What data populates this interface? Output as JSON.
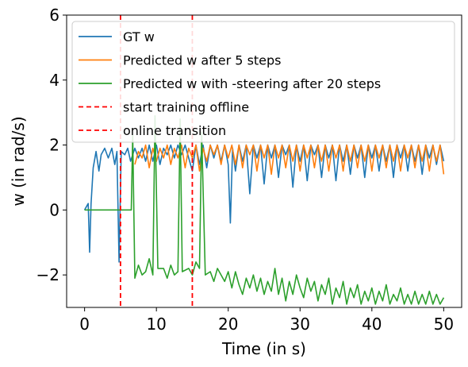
{
  "chart_data": {
    "type": "line",
    "xlabel": "Time (in s)",
    "ylabel": "w (in rad/s)",
    "xlim": [
      -2.5,
      52.5
    ],
    "ylim": [
      -3,
      6
    ],
    "x_ticks": [
      0,
      10,
      20,
      30,
      40,
      50
    ],
    "y_ticks": [
      -2,
      0,
      2,
      4,
      6
    ],
    "y_tick_labels": [
      "−2",
      "0",
      "2",
      "4",
      "6"
    ],
    "grid": false,
    "legend_position": "top-left",
    "series": [
      {
        "name": "GT w",
        "color": "#1f77b4",
        "points": [
          [
            0,
            0
          ],
          [
            0.5,
            0.2
          ],
          [
            0.7,
            -1.3
          ],
          [
            0.9,
            0.2
          ],
          [
            1.2,
            1.3
          ],
          [
            1.6,
            1.8
          ],
          [
            2.0,
            1.2
          ],
          [
            2.3,
            1.7
          ],
          [
            2.8,
            1.9
          ],
          [
            3.3,
            1.6
          ],
          [
            3.8,
            1.9
          ],
          [
            4.2,
            1.4
          ],
          [
            4.5,
            1.8
          ],
          [
            4.8,
            -1.6
          ],
          [
            5.1,
            1.8
          ],
          [
            5.6,
            1.7
          ],
          [
            6.0,
            1.9
          ],
          [
            6.4,
            1.5
          ],
          [
            7.0,
            1.9
          ],
          [
            7.5,
            1.6
          ],
          [
            8.0,
            1.9
          ],
          [
            8.5,
            1.5
          ],
          [
            9.0,
            2.0
          ],
          [
            9.5,
            1.5
          ],
          [
            10.0,
            2.0
          ],
          [
            10.5,
            1.4
          ],
          [
            11.0,
            1.9
          ],
          [
            11.5,
            1.7
          ],
          [
            12.0,
            2.0
          ],
          [
            12.5,
            1.6
          ],
          [
            13.0,
            2.0
          ],
          [
            13.5,
            1.7
          ],
          [
            14.0,
            2.0
          ],
          [
            14.5,
            1.6
          ],
          [
            15.0,
            1.2
          ],
          [
            15.5,
            2.0
          ],
          [
            16.0,
            1.4
          ],
          [
            16.5,
            2.0
          ],
          [
            17.0,
            1.3
          ],
          [
            17.5,
            2.0
          ],
          [
            18.0,
            1.6
          ],
          [
            18.5,
            2.0
          ],
          [
            19.0,
            1.5
          ],
          [
            19.5,
            2.0
          ],
          [
            20.0,
            1.4
          ],
          [
            20.3,
            -0.4
          ],
          [
            20.6,
            1.9
          ],
          [
            21.0,
            1.2
          ],
          [
            21.5,
            2.0
          ],
          [
            22.0,
            1.5
          ],
          [
            22.5,
            2.0
          ],
          [
            23.0,
            0.5
          ],
          [
            23.5,
            2.0
          ],
          [
            24.0,
            1.6
          ],
          [
            24.5,
            2.0
          ],
          [
            25.0,
            0.8
          ],
          [
            25.5,
            2.0
          ],
          [
            26.0,
            1.6
          ],
          [
            26.5,
            2.0
          ],
          [
            27.0,
            1.0
          ],
          [
            27.5,
            2.0
          ],
          [
            28.0,
            1.7
          ],
          [
            28.5,
            2.0
          ],
          [
            29.0,
            0.7
          ],
          [
            29.5,
            2.0
          ],
          [
            30.0,
            1.5
          ],
          [
            30.5,
            2.0
          ],
          [
            31.0,
            0.9
          ],
          [
            31.5,
            2.0
          ],
          [
            32.0,
            1.7
          ],
          [
            32.5,
            2.0
          ],
          [
            33.0,
            1.0
          ],
          [
            33.5,
            2.0
          ],
          [
            34.0,
            1.6
          ],
          [
            34.5,
            2.0
          ],
          [
            35.0,
            0.9
          ],
          [
            35.5,
            2.0
          ],
          [
            36.0,
            1.5
          ],
          [
            36.5,
            2.0
          ],
          [
            37.0,
            1.1
          ],
          [
            37.5,
            2.0
          ],
          [
            38.0,
            1.6
          ],
          [
            38.5,
            2.0
          ],
          [
            39.0,
            1.0
          ],
          [
            39.5,
            2.0
          ],
          [
            40.0,
            1.6
          ],
          [
            40.5,
            2.0
          ],
          [
            41.0,
            1.2
          ],
          [
            41.5,
            2.0
          ],
          [
            42.0,
            1.5
          ],
          [
            42.5,
            2.0
          ],
          [
            43.0,
            1.0
          ],
          [
            43.5,
            2.0
          ],
          [
            44.0,
            1.6
          ],
          [
            44.5,
            2.0
          ],
          [
            45.0,
            1.2
          ],
          [
            45.5,
            2.0
          ],
          [
            46.0,
            1.5
          ],
          [
            46.5,
            2.0
          ],
          [
            47.0,
            1.1
          ],
          [
            47.5,
            2.0
          ],
          [
            48.0,
            1.6
          ],
          [
            48.5,
            2.0
          ],
          [
            49.0,
            1.4
          ],
          [
            49.5,
            2.0
          ],
          [
            50.0,
            1.5
          ]
        ]
      },
      {
        "name": "Predicted w after 5 steps",
        "color": "#ff7f0e",
        "points": [
          [
            7.0,
            1.4
          ],
          [
            7.5,
            1.8
          ],
          [
            8.0,
            1.6
          ],
          [
            8.5,
            2.0
          ],
          [
            9.0,
            1.3
          ],
          [
            9.5,
            1.9
          ],
          [
            10.0,
            1.5
          ],
          [
            10.5,
            1.9
          ],
          [
            11.0,
            1.6
          ],
          [
            11.5,
            2.0
          ],
          [
            12.0,
            1.4
          ],
          [
            12.5,
            1.9
          ],
          [
            13.0,
            1.6
          ],
          [
            13.5,
            2.0
          ],
          [
            14.0,
            1.3
          ],
          [
            14.5,
            1.9
          ],
          [
            15.0,
            1.6
          ],
          [
            15.5,
            2.0
          ],
          [
            16.0,
            1.2
          ],
          [
            16.5,
            1.9
          ],
          [
            17.0,
            1.5
          ],
          [
            17.5,
            2.0
          ],
          [
            18.0,
            1.7
          ],
          [
            18.5,
            2.0
          ],
          [
            19.0,
            1.4
          ],
          [
            19.5,
            2.0
          ],
          [
            20.0,
            1.6
          ],
          [
            20.5,
            2.0
          ],
          [
            21.0,
            1.4
          ],
          [
            21.5,
            2.0
          ],
          [
            22.0,
            1.3
          ],
          [
            22.5,
            2.0
          ],
          [
            23.0,
            1.7
          ],
          [
            23.5,
            2.0
          ],
          [
            24.0,
            1.2
          ],
          [
            24.5,
            2.0
          ],
          [
            25.0,
            1.6
          ],
          [
            25.5,
            2.0
          ],
          [
            26.0,
            1.1
          ],
          [
            26.5,
            2.0
          ],
          [
            27.0,
            1.6
          ],
          [
            27.5,
            2.0
          ],
          [
            28.0,
            1.3
          ],
          [
            28.5,
            2.0
          ],
          [
            29.0,
            1.5
          ],
          [
            29.5,
            2.0
          ],
          [
            30.0,
            1.2
          ],
          [
            30.5,
            2.0
          ],
          [
            31.0,
            1.6
          ],
          [
            31.5,
            2.0
          ],
          [
            32.0,
            1.3
          ],
          [
            32.5,
            2.0
          ],
          [
            33.0,
            1.5
          ],
          [
            33.5,
            2.0
          ],
          [
            34.0,
            1.2
          ],
          [
            34.5,
            2.0
          ],
          [
            35.0,
            1.6
          ],
          [
            35.5,
            2.0
          ],
          [
            36.0,
            1.2
          ],
          [
            36.5,
            2.0
          ],
          [
            37.0,
            1.5
          ],
          [
            37.5,
            2.0
          ],
          [
            38.0,
            1.3
          ],
          [
            38.5,
            2.0
          ],
          [
            39.0,
            1.5
          ],
          [
            39.5,
            2.0
          ],
          [
            40.0,
            1.2
          ],
          [
            40.5,
            2.0
          ],
          [
            41.0,
            1.6
          ],
          [
            41.5,
            2.0
          ],
          [
            42.0,
            1.3
          ],
          [
            42.5,
            2.0
          ],
          [
            43.0,
            1.5
          ],
          [
            43.5,
            2.0
          ],
          [
            44.0,
            1.2
          ],
          [
            44.5,
            2.0
          ],
          [
            45.0,
            1.6
          ],
          [
            45.5,
            2.0
          ],
          [
            46.0,
            1.3
          ],
          [
            46.5,
            2.0
          ],
          [
            47.0,
            1.5
          ],
          [
            47.5,
            2.0
          ],
          [
            48.0,
            1.2
          ],
          [
            48.5,
            2.0
          ],
          [
            49.0,
            1.5
          ],
          [
            49.5,
            2.0
          ],
          [
            50.0,
            1.1
          ]
        ]
      },
      {
        "name": "Predicted w with -steering after 20 steps",
        "color": "#2ca02c",
        "points": [
          [
            0,
            0
          ],
          [
            6.5,
            0
          ],
          [
            6.7,
            2.3
          ],
          [
            7.0,
            -2.1
          ],
          [
            7.5,
            -1.7
          ],
          [
            8.0,
            -2.0
          ],
          [
            8.5,
            -1.9
          ],
          [
            9.0,
            -1.5
          ],
          [
            9.5,
            -2.0
          ],
          [
            9.8,
            2.9
          ],
          [
            10.2,
            -1.8
          ],
          [
            11.0,
            -1.8
          ],
          [
            11.5,
            -2.1
          ],
          [
            12.0,
            -1.7
          ],
          [
            12.5,
            -2.0
          ],
          [
            13.0,
            -1.9
          ],
          [
            13.3,
            2.8
          ],
          [
            13.6,
            -1.9
          ],
          [
            14.5,
            -1.8
          ],
          [
            15.0,
            -2.0
          ],
          [
            15.5,
            -1.6
          ],
          [
            16.0,
            -1.8
          ],
          [
            16.3,
            2.4
          ],
          [
            16.8,
            -2.0
          ],
          [
            17.5,
            -1.9
          ],
          [
            18.0,
            -2.2
          ],
          [
            18.5,
            -1.8
          ],
          [
            19.0,
            -2.0
          ],
          [
            19.5,
            -2.2
          ],
          [
            20.0,
            -1.9
          ],
          [
            20.5,
            -2.4
          ],
          [
            21.0,
            -1.9
          ],
          [
            21.5,
            -2.3
          ],
          [
            22.0,
            -2.6
          ],
          [
            22.5,
            -2.1
          ],
          [
            23.0,
            -2.4
          ],
          [
            23.5,
            -2.0
          ],
          [
            24.0,
            -2.5
          ],
          [
            24.5,
            -2.1
          ],
          [
            25.0,
            -2.6
          ],
          [
            25.5,
            -2.2
          ],
          [
            26.0,
            -2.5
          ],
          [
            26.5,
            -1.8
          ],
          [
            27.0,
            -2.6
          ],
          [
            27.5,
            -2.1
          ],
          [
            28.0,
            -2.8
          ],
          [
            28.5,
            -2.2
          ],
          [
            29.0,
            -2.6
          ],
          [
            29.5,
            -2.0
          ],
          [
            30.0,
            -2.4
          ],
          [
            30.5,
            -2.7
          ],
          [
            31.0,
            -2.1
          ],
          [
            31.5,
            -2.5
          ],
          [
            32.0,
            -2.2
          ],
          [
            32.5,
            -2.8
          ],
          [
            33.0,
            -2.3
          ],
          [
            33.5,
            -2.6
          ],
          [
            34.0,
            -2.1
          ],
          [
            34.5,
            -2.9
          ],
          [
            35.0,
            -2.4
          ],
          [
            35.5,
            -2.7
          ],
          [
            36.0,
            -2.2
          ],
          [
            36.5,
            -2.9
          ],
          [
            37.0,
            -2.4
          ],
          [
            37.5,
            -2.7
          ],
          [
            38.0,
            -2.3
          ],
          [
            38.5,
            -2.9
          ],
          [
            39.0,
            -2.5
          ],
          [
            39.5,
            -2.8
          ],
          [
            40.0,
            -2.4
          ],
          [
            40.5,
            -2.9
          ],
          [
            41.0,
            -2.5
          ],
          [
            41.5,
            -2.8
          ],
          [
            42.0,
            -2.3
          ],
          [
            42.5,
            -2.9
          ],
          [
            43.0,
            -2.6
          ],
          [
            43.5,
            -2.8
          ],
          [
            44.0,
            -2.4
          ],
          [
            44.5,
            -2.9
          ],
          [
            45.0,
            -2.6
          ],
          [
            45.5,
            -2.9
          ],
          [
            46.0,
            -2.5
          ],
          [
            46.5,
            -2.9
          ],
          [
            47.0,
            -2.6
          ],
          [
            47.5,
            -2.9
          ],
          [
            48.0,
            -2.5
          ],
          [
            48.5,
            -2.9
          ],
          [
            49.0,
            -2.6
          ],
          [
            49.5,
            -2.9
          ],
          [
            50.0,
            -2.7
          ]
        ]
      }
    ],
    "vlines": [
      {
        "name": "start training offline",
        "x": 5,
        "color": "#ff0000",
        "style": "dashed"
      },
      {
        "name": "online transition",
        "x": 15,
        "color": "#ff0000",
        "style": "dashed"
      }
    ]
  }
}
